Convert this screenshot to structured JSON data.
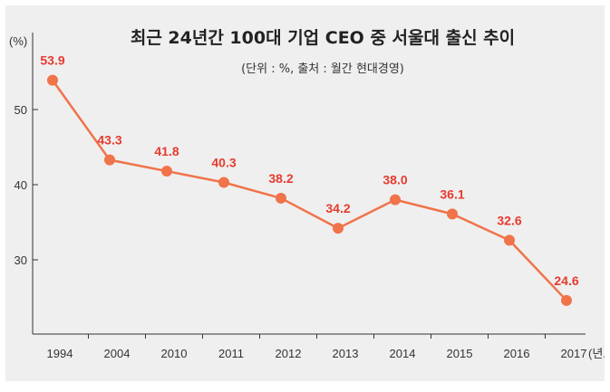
{
  "chart_data": {
    "type": "line",
    "title": "최근 24년간 100대 기업 CEO 중 서울대 출신 추이",
    "subtitle": "(단위 : %, 출처 : 월간 현대경영)",
    "y_unit": "(%)",
    "x_unit_suffix": "(년도)",
    "categories": [
      "1994",
      "2004",
      "2010",
      "2011",
      "2012",
      "2013",
      "2014",
      "2015",
      "2016",
      "2017"
    ],
    "series": [
      {
        "values": [
          53.9,
          43.3,
          41.8,
          40.3,
          38.2,
          34.2,
          38.0,
          36.1,
          32.6,
          24.6
        ],
        "labels": [
          "53.9",
          "43.3",
          "41.8",
          "40.3",
          "38.2",
          "34.2",
          "38.0",
          "36.1",
          "32.6",
          "24.6"
        ]
      }
    ],
    "y_ticks": [
      "30",
      "40",
      "50"
    ],
    "ylim": [
      20,
      57
    ],
    "grid": false,
    "colors": {
      "line": "#f0734a",
      "marker": "#f0734a",
      "label": "#e63b2e",
      "axis": "#333333",
      "background": "#efefef"
    }
  }
}
